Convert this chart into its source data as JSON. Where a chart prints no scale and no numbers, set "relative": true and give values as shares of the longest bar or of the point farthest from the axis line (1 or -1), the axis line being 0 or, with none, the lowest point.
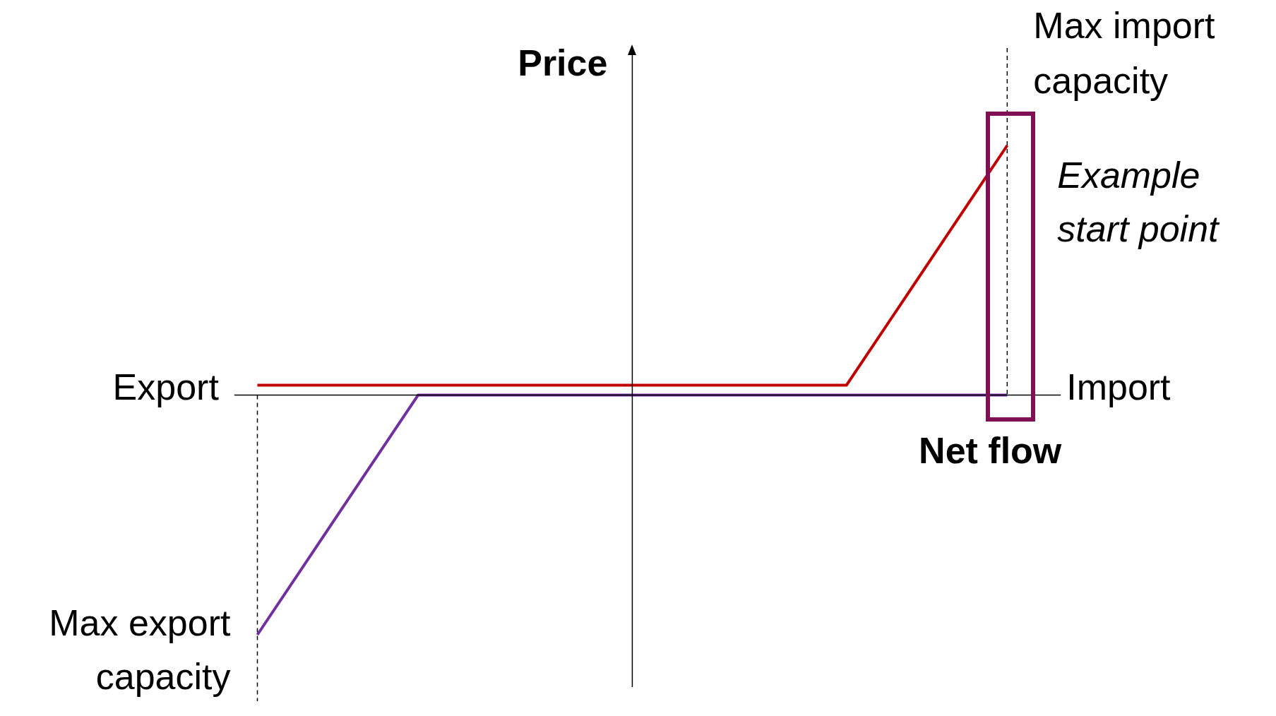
{
  "chart_data": {
    "type": "line",
    "relative": true,
    "xlabel": "Net flow",
    "ylabel": "Price",
    "categories": [
      null,
      null,
      null,
      null,
      null,
      null,
      null,
      null,
      null,
      null,
      null,
      null,
      null,
      null,
      null
    ],
    "series": [
      {
        "color": "#c00000",
        "values": [
          0.04,
          0.04,
          0.04,
          0.04,
          0.04,
          0.04,
          0.04,
          0.04,
          0.04,
          0.04,
          0.04,
          0.04,
          0.36,
          0.68,
          1.0
        ]
      },
      {
        "color": "#7030a0",
        "values": [
          -0.96,
          -0.64,
          -0.32,
          0,
          0,
          0,
          0,
          0,
          0,
          0,
          0,
          0,
          0,
          0,
          0
        ]
      }
    ],
    "ref_lines": [
      {
        "axis": "x",
        "label": "Max export capacity",
        "color": "#000000",
        "line_style": "dashed"
      },
      {
        "axis": "x",
        "label": "Max import capacity",
        "color": "#000000",
        "line_style": "dashed"
      }
    ],
    "annotations": [
      "Export",
      "Import",
      "Example start point"
    ],
    "legend": false,
    "marker": "none",
    "line_style": "solid"
  }
}
